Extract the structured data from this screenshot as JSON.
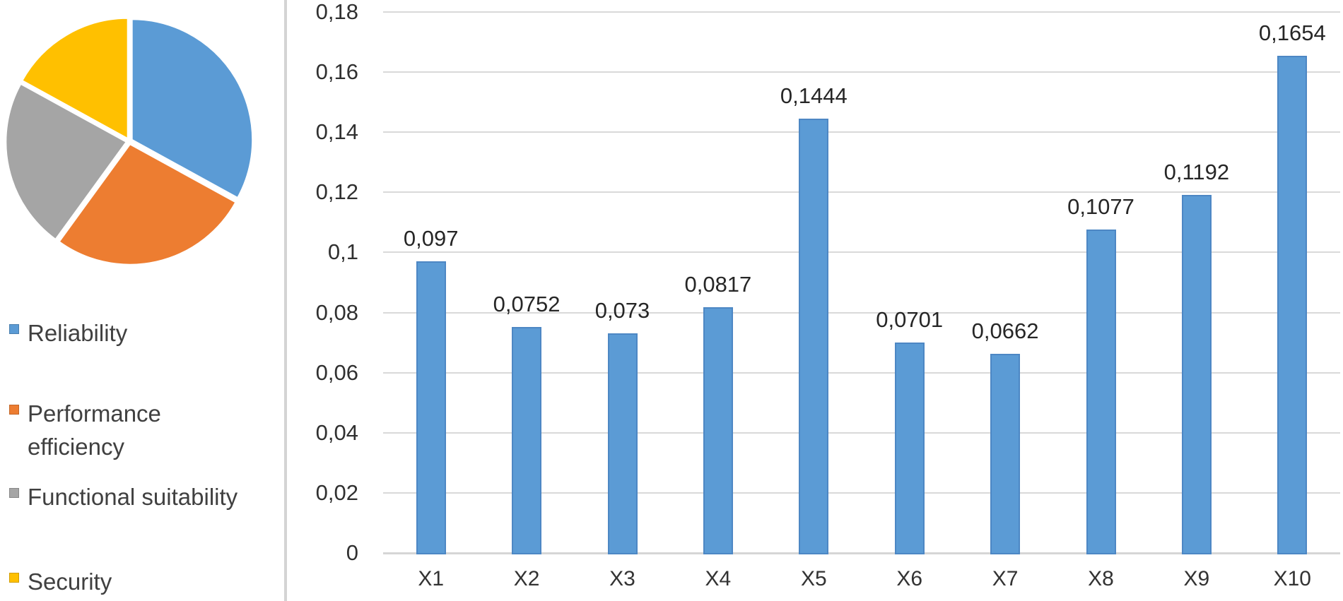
{
  "figure": {
    "background": "#ffffff",
    "divider_color": "#d4d4d4"
  },
  "chart_data": [
    {
      "type": "pie",
      "title": "",
      "labels": [
        "Reliability",
        "Performance efficiency",
        "Functional suitability",
        "Security"
      ],
      "values": [
        33,
        27,
        23,
        17
      ],
      "colors": [
        "#5b9bd5",
        "#ed7d31",
        "#a5a5a5",
        "#ffc000"
      ],
      "legend_position": "bottom-left",
      "start_angle_deg": 0,
      "direction": "clockwise",
      "exploded": true
    },
    {
      "type": "bar",
      "title": "",
      "categories": [
        "X1",
        "X2",
        "X3",
        "X4",
        "X5",
        "X6",
        "X7",
        "X8",
        "X9",
        "X10"
      ],
      "values": [
        0.097,
        0.0752,
        0.073,
        0.0817,
        0.1444,
        0.0701,
        0.0662,
        0.1077,
        0.1192,
        0.1654
      ],
      "data_labels": [
        "0,097",
        "0,0752",
        "0,073",
        "0,0817",
        "0,1444",
        "0,0701",
        "0,0662",
        "0,1077",
        "0,1192",
        "0,1654"
      ],
      "y_tick_labels": [
        "0,18",
        "0,16",
        "0,14",
        "0,12",
        "0,1",
        "0,08",
        "0,06",
        "0,04",
        "0,02",
        "0"
      ],
      "y_tick_values": [
        0.18,
        0.16,
        0.14,
        0.12,
        0.1,
        0.08,
        0.06,
        0.04,
        0.02,
        0
      ],
      "ylim": [
        0,
        0.18
      ],
      "xlabel": "",
      "ylabel": "",
      "grid": true,
      "bar_color": "#5b9bd5",
      "gridline_color": "#d9d9d9",
      "decimal_separator": ","
    }
  ]
}
